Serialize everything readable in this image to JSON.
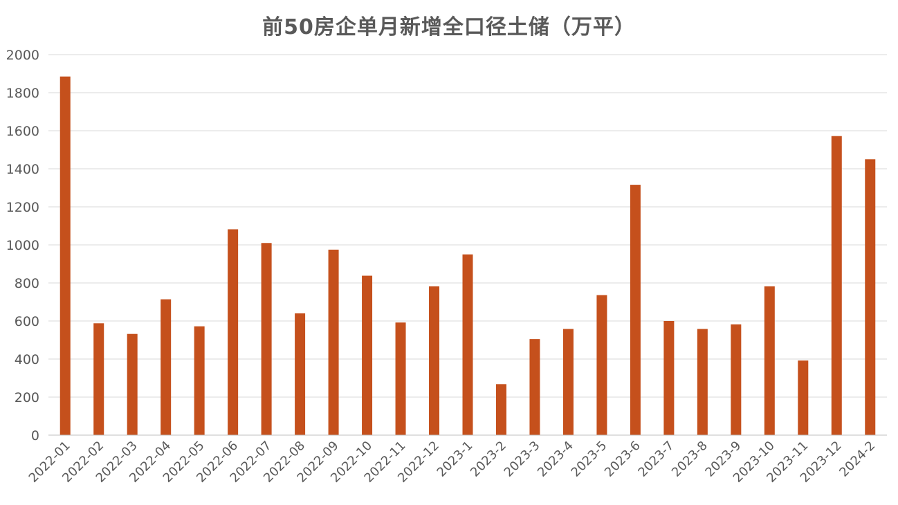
{
  "chart_data": {
    "type": "bar",
    "title": "前50房企单月新增全口径土储（万平）",
    "xlabel": "",
    "ylabel": "",
    "ylim": [
      0,
      2000
    ],
    "yticks": [
      0,
      200,
      400,
      600,
      800,
      1000,
      1200,
      1400,
      1600,
      1800,
      2000
    ],
    "grid": true,
    "legend": "none",
    "categories": [
      "2022-01",
      "2022-02",
      "2022-03",
      "2022-04",
      "2022-05",
      "2022-06",
      "2022-07",
      "2022-08",
      "2022-09",
      "2022-10",
      "2022-11",
      "2022-12",
      "2023-1",
      "2023-2",
      "2023-3",
      "2023-4",
      "2023-5",
      "2023-6",
      "2023-7",
      "2023-8",
      "2023-9",
      "2023-10",
      "2023-11",
      "2023-12",
      "2024-2"
    ],
    "values": [
      1885,
      588,
      532,
      714,
      572,
      1082,
      1010,
      640,
      975,
      838,
      592,
      782,
      950,
      268,
      505,
      558,
      736,
      1316,
      600,
      558,
      582,
      782,
      392,
      1572,
      1450
    ],
    "bar_color": "#C5501C",
    "grid_color": "#D9D9D9",
    "axis_color": "#BFBFBF",
    "text_color": "#595959"
  }
}
